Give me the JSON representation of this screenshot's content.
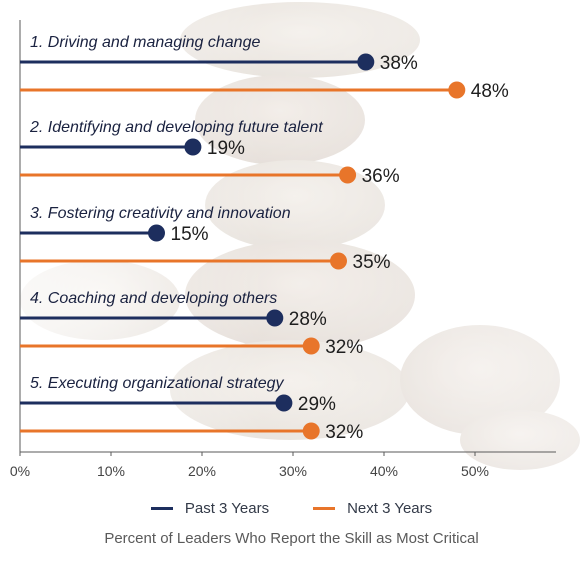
{
  "colors": {
    "past": "#1d2e5e",
    "next": "#e8752a",
    "axis": "#5a5a5a"
  },
  "chart_data": {
    "type": "lollipop",
    "title": "",
    "xlabel": "Percent of Leaders Who Report the Skill as Most Critical",
    "ylabel": "",
    "xlim": [
      0,
      57
    ],
    "x_ticks": [
      "0%",
      "10%",
      "20%",
      "30%",
      "40%",
      "50%"
    ],
    "x_tick_values": [
      0,
      10,
      20,
      30,
      40,
      50
    ],
    "categories": [
      "1. Driving and managing change",
      "2. Identifying and developing future talent",
      "3. Fostering creativity and innovation",
      "4. Coaching and developing others",
      "5. Executing organizational strategy"
    ],
    "series": [
      {
        "name": "Past 3 Years",
        "values": [
          38,
          19,
          15,
          28,
          29
        ],
        "labels": [
          "38%",
          "19%",
          "15%",
          "28%",
          "29%"
        ]
      },
      {
        "name": "Next 3 Years",
        "values": [
          48,
          36,
          35,
          32,
          32
        ],
        "labels": [
          "48%",
          "36%",
          "35%",
          "32%",
          "32%"
        ]
      }
    ],
    "legend_position": "bottom-center",
    "grid": false
  }
}
